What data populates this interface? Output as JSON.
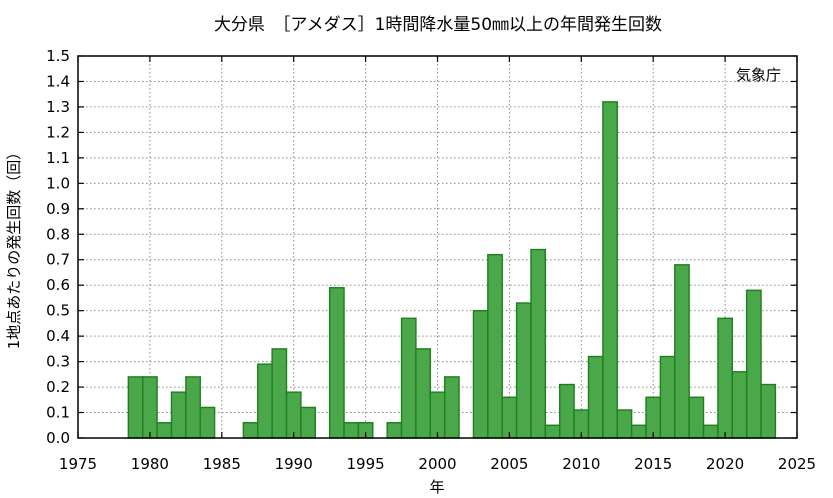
{
  "chart_data": {
    "type": "bar",
    "title": "大分県　［アメダス］1時間降水量50㎜以上の年間発生回数",
    "source": "気象庁",
    "xlabel": "年",
    "ylabel": "1地点あたりの発生回数（回）",
    "xlim": [
      1975,
      2025
    ],
    "ylim": [
      0,
      1.5
    ],
    "xticks": [
      "1975",
      "1980",
      "1985",
      "1990",
      "1995",
      "2000",
      "2005",
      "2010",
      "2015",
      "2020",
      "2025"
    ],
    "yticks": [
      "0.0",
      "0.1",
      "0.2",
      "0.3",
      "0.4",
      "0.5",
      "0.6",
      "0.7",
      "0.8",
      "0.9",
      "1.0",
      "1.1",
      "1.2",
      "1.3",
      "1.4",
      "1.5"
    ],
    "grid": true,
    "bar_fill": "#4aa84a",
    "bar_stroke": "#1e7f1e",
    "x": [
      1979,
      1980,
      1981,
      1982,
      1983,
      1984,
      1985,
      1986,
      1987,
      1988,
      1989,
      1990,
      1991,
      1992,
      1993,
      1994,
      1995,
      1996,
      1997,
      1998,
      1999,
      2000,
      2001,
      2002,
      2003,
      2004,
      2005,
      2006,
      2007,
      2008,
      2009,
      2010,
      2011,
      2012,
      2013,
      2014,
      2015,
      2016,
      2017,
      2018,
      2019,
      2020,
      2021,
      2022,
      2023
    ],
    "values": [
      0.24,
      0.24,
      0.06,
      0.18,
      0.24,
      0.12,
      0,
      0,
      0.06,
      0.29,
      0.35,
      0.18,
      0.12,
      0,
      0.59,
      0.06,
      0.06,
      0,
      0.06,
      0.47,
      0.35,
      0.18,
      0.24,
      0,
      0.5,
      0.72,
      0.16,
      0.53,
      0.74,
      0.05,
      0.21,
      0.11,
      0.32,
      1.32,
      0.11,
      0.05,
      0.16,
      0.32,
      0.68,
      0.16,
      0.05,
      0.47,
      0.26,
      0.58,
      0.21
    ]
  }
}
